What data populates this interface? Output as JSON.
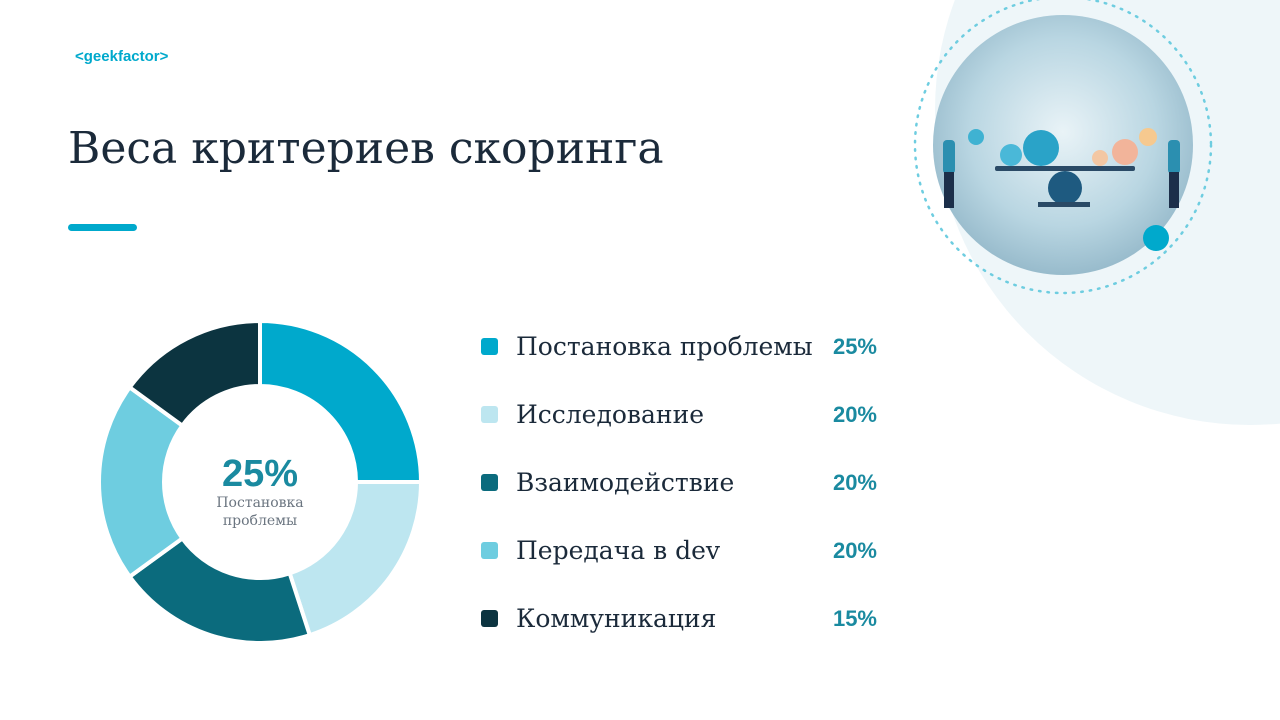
{
  "header": {
    "logo": "<geekfactor>"
  },
  "chart_data": {
    "type": "pie",
    "donut": true,
    "title": "Веса критериев скоринга",
    "categories": [
      "Постановка проблемы",
      "Исследование",
      "Взаимодействие",
      "Передача в dev",
      "Коммуникация"
    ],
    "values": [
      25,
      20,
      20,
      20,
      15
    ],
    "value_labels": [
      "25%",
      "20%",
      "20%",
      "20%",
      "15%"
    ],
    "colors": [
      "#00a9cc",
      "#bde6f0",
      "#0b6b7d",
      "#6ecde0",
      "#0c3440"
    ]
  }
}
